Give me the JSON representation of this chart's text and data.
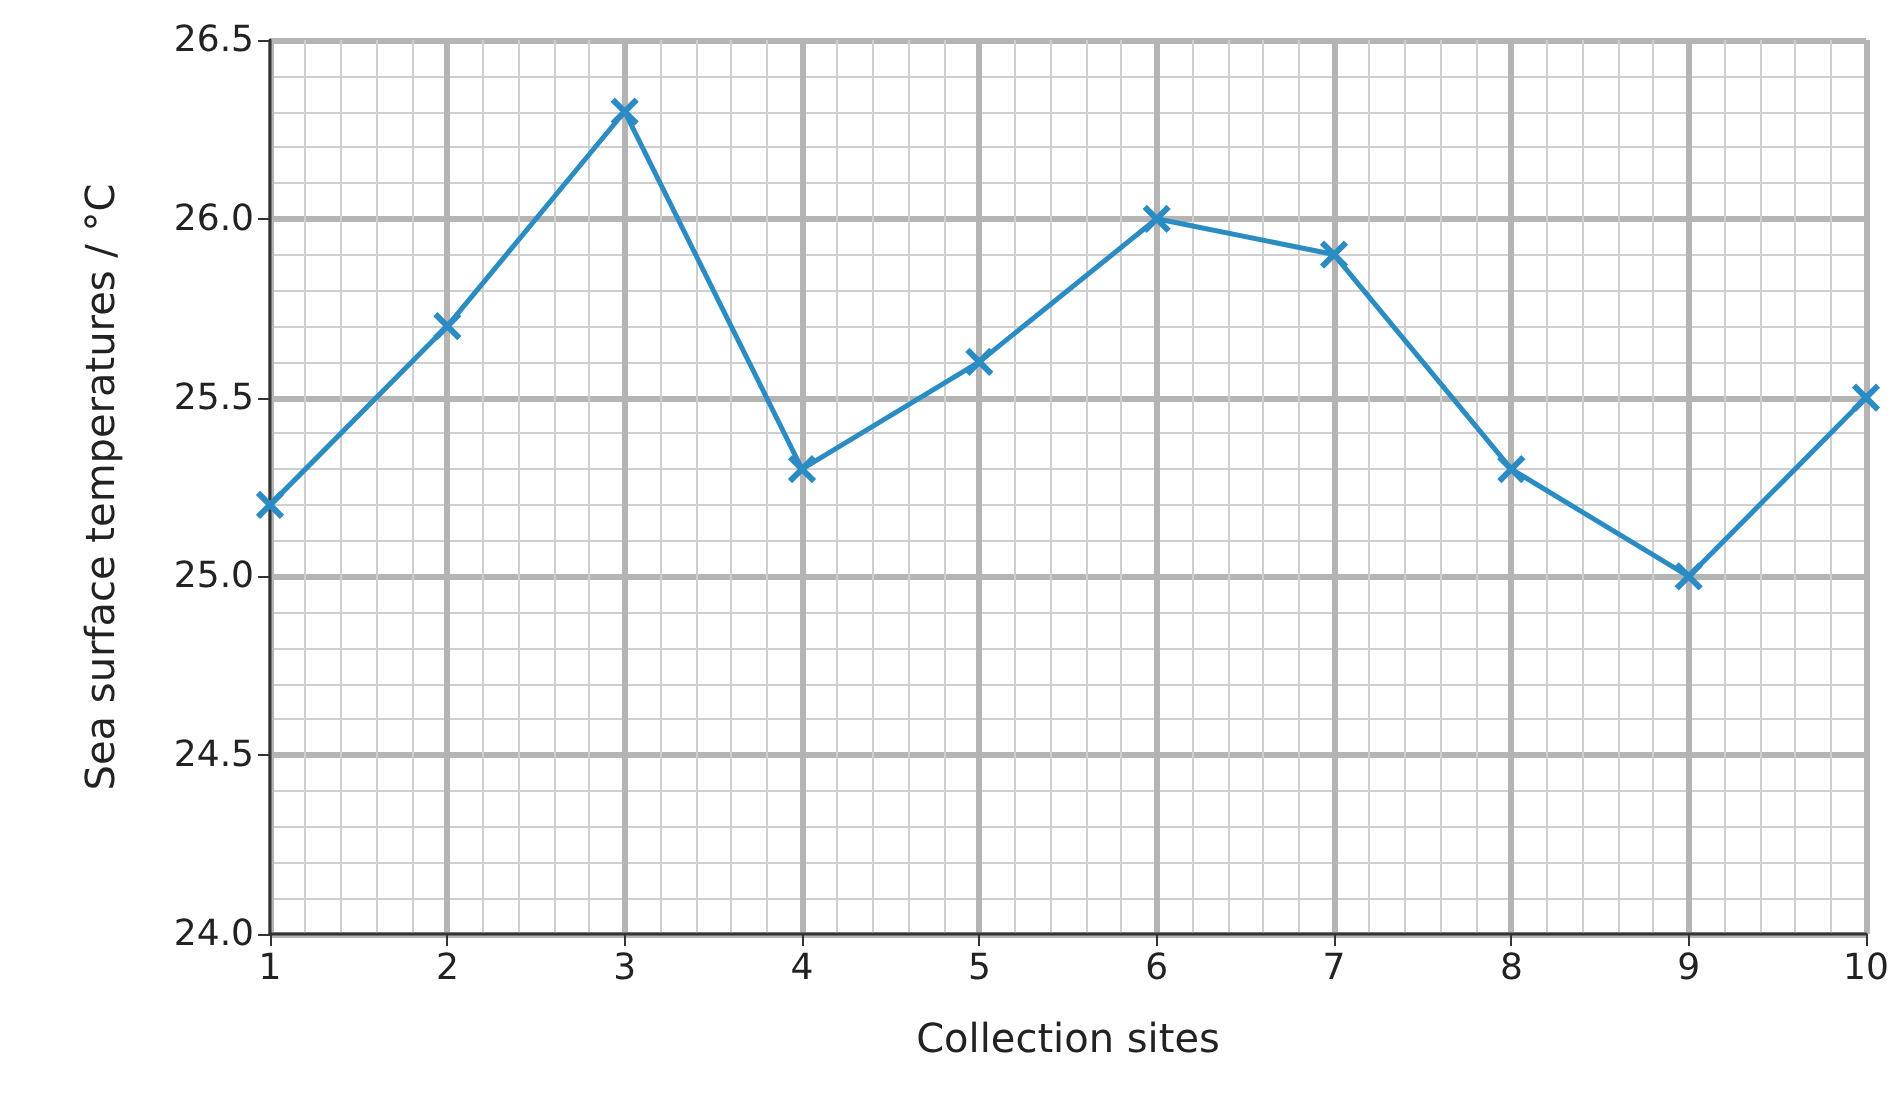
{
  "chart_data": {
    "type": "line",
    "xlabel": "Collection sites",
    "ylabel": "Sea surface temperatures / °C",
    "x": [
      1,
      2,
      3,
      4,
      5,
      6,
      7,
      8,
      9,
      10
    ],
    "values": [
      25.2,
      25.7,
      26.3,
      25.3,
      25.6,
      26.0,
      25.9,
      25.3,
      25.0,
      25.5
    ],
    "color": "#2b8cc4",
    "xlim": [
      1,
      10
    ],
    "xticks": [
      1,
      2,
      3,
      4,
      5,
      6,
      7,
      8,
      9,
      10
    ],
    "ylim": [
      24.0,
      26.5
    ],
    "yticks": [
      {
        "value": 24.0,
        "label": "24.0"
      },
      24.5,
      {
        "value": 25.0,
        "label": "25.0"
      },
      25.5,
      {
        "value": 26.0,
        "label": "26.0"
      },
      26.5
    ],
    "grid": true,
    "marker": "cross",
    "line_style": "solid"
  }
}
